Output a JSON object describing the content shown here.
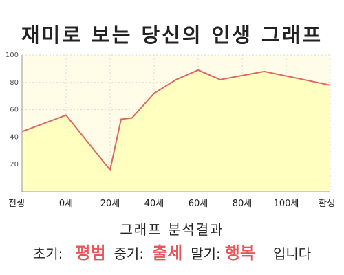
{
  "title": "재미로 보는 당신의 인생 그래프",
  "chart_data": {
    "type": "area",
    "title": "재미로 보는 당신의 인생 그래프",
    "x_tick_labels": [
      "전생",
      "0세",
      "20세",
      "40세",
      "60세",
      "80세",
      "100세",
      "환생"
    ],
    "y_ticks": [
      20,
      40,
      60,
      80,
      100
    ],
    "ylim": [
      0,
      100
    ],
    "series": [
      {
        "points": [
          {
            "x": -2,
            "y": 44
          },
          {
            "x": 0,
            "y": 56
          },
          {
            "x": 20,
            "y": 16
          },
          {
            "x": 25,
            "y": 53
          },
          {
            "x": 30,
            "y": 54
          },
          {
            "x": 40,
            "y": 72
          },
          {
            "x": 50,
            "y": 82
          },
          {
            "x": 60,
            "y": 89
          },
          {
            "x": 70,
            "y": 82
          },
          {
            "x": 90,
            "y": 88
          },
          {
            "x": 110,
            "y": 78
          }
        ]
      }
    ],
    "grid": true,
    "colors": {
      "fill": "#ffffc0",
      "line": "#e06666",
      "grid": "#d8d8d8",
      "background": "#fffde8"
    }
  },
  "result": {
    "heading": "그래프 분석결과",
    "early_label": "초기:",
    "early_value": "평범",
    "mid_label": "중기:",
    "mid_value": "출세",
    "late_label": "말기:",
    "late_value": "행복",
    "ending": "입니다"
  }
}
